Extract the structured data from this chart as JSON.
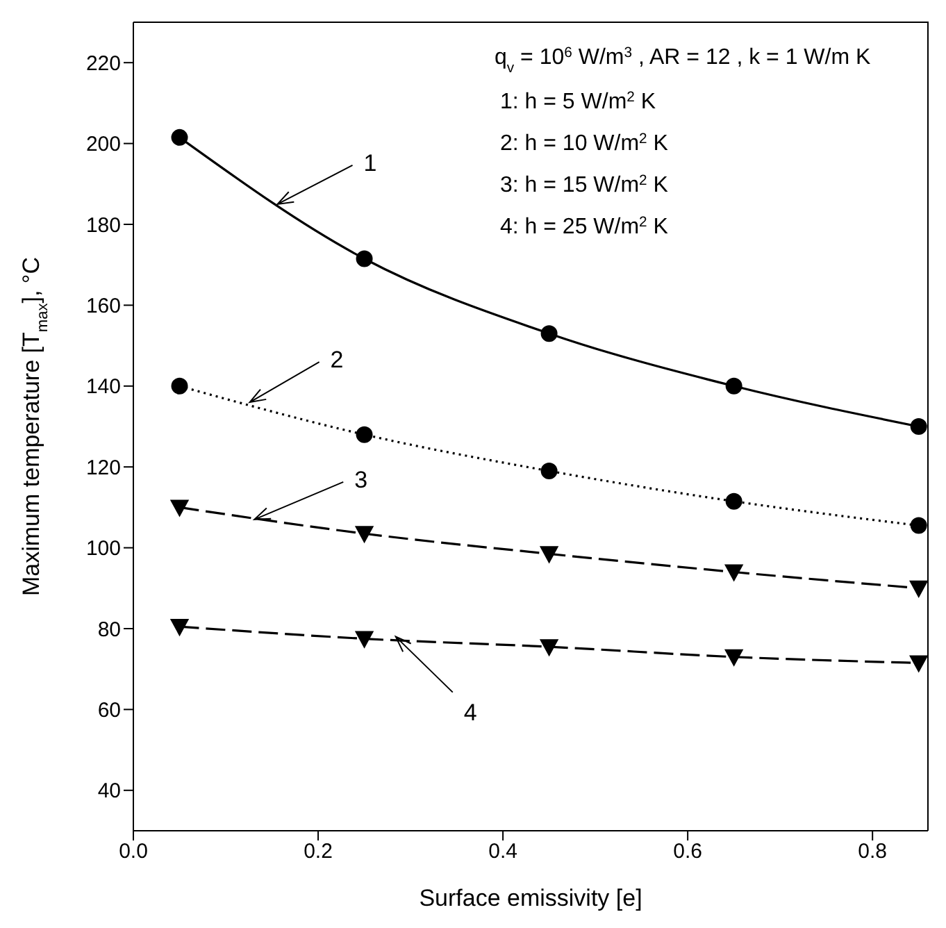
{
  "chart_data": {
    "type": "line",
    "xlabel": "Surface emissivity [e]",
    "ylabel": "Maximum temperature [T$_{max}$], °C",
    "x": [
      0.05,
      0.25,
      0.45,
      0.65,
      0.85
    ],
    "series": [
      {
        "color": "#000000",
        "marker": "circle",
        "line_style": "solid",
        "values": [
          201.5,
          171.5,
          153,
          140,
          130
        ]
      },
      {
        "color": "#000000",
        "marker": "circle",
        "line_style": "dotted",
        "values": [
          140,
          128,
          119,
          111.5,
          105.5
        ]
      },
      {
        "color": "#000000",
        "marker": "triangle",
        "line_style": "dashed",
        "values": [
          110,
          103.5,
          98.5,
          94,
          90
        ]
      },
      {
        "color": "#000000",
        "marker": "triangle",
        "line_style": "dashed",
        "values": [
          80.5,
          77.5,
          75.5,
          73,
          71.5
        ]
      }
    ],
    "xlim": [
      0,
      0.86
    ],
    "xticks": [
      {
        "value": 0,
        "label": "0.0"
      },
      {
        "value": 0.2,
        "label": "0.2"
      },
      {
        "value": 0.4,
        "label": "0.4"
      },
      {
        "value": 0.6,
        "label": "0.6"
      },
      {
        "value": 0.8,
        "label": "0.8"
      }
    ],
    "ylim": [
      30,
      230
    ],
    "yticks": [
      40,
      60,
      80,
      100,
      120,
      140,
      160,
      180,
      200,
      220
    ],
    "grid": false,
    "legend": false,
    "annotations": [
      "q$_{v}$ = 10$^{6}$ W/m$^{3}$ , AR = 12 , k = 1 W/m K",
      "1: h = 5 W/m$^{2}$ K",
      "2: h = 10 W/m$^{2}$ K",
      "3: h = 15 W/m$^{2}$ K",
      "4: h = 25 W/m$^{2}$ K",
      {
        "text": "1",
        "x": 0.156,
        "y": 185
      },
      {
        "text": "2",
        "x": 0.126,
        "y": 136
      },
      {
        "text": "3",
        "x": 0.131,
        "y": 107
      },
      {
        "text": "4",
        "x": 0.284,
        "y": 78
      }
    ]
  }
}
